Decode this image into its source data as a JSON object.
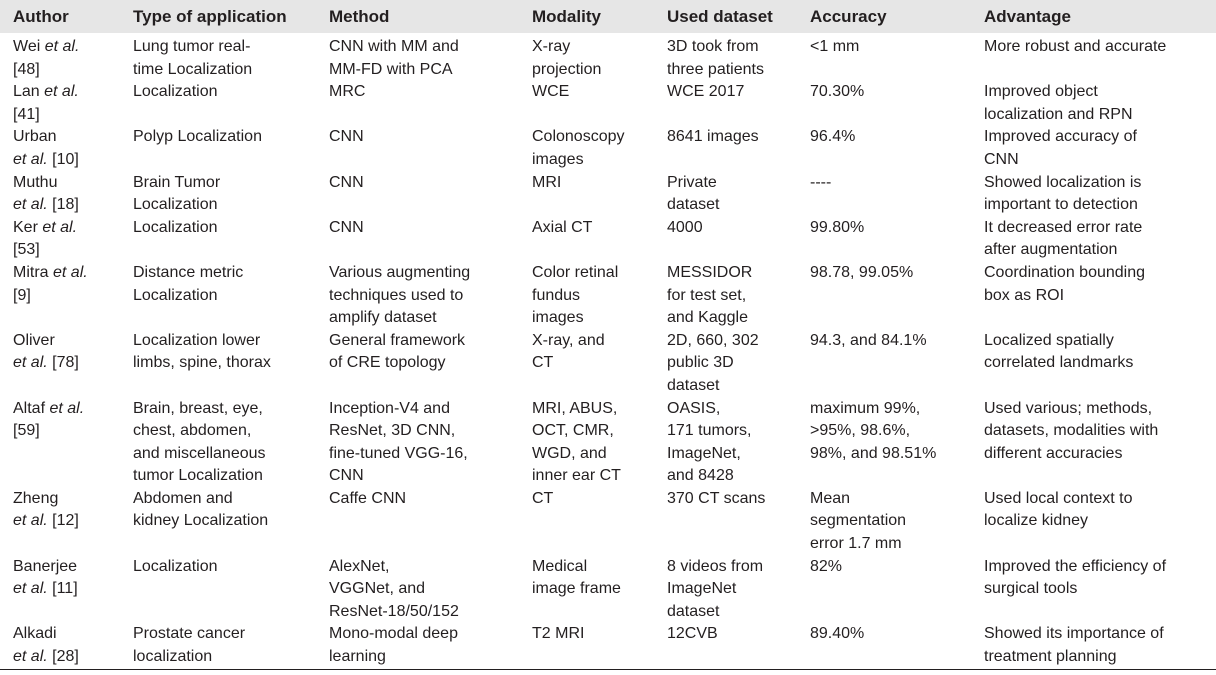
{
  "headers": [
    "Author",
    "Type of application",
    "Method",
    "Modality",
    "Used dataset",
    "Accuracy",
    "Advantage"
  ],
  "rows": [
    {
      "author": [
        [
          "Wei ",
          "et al.",
          ""
        ],
        [
          "[48]",
          "",
          ""
        ]
      ],
      "type": [
        "Lung tumor real-",
        "time Localization"
      ],
      "method": [
        "CNN with MM and",
        "MM-FD with PCA"
      ],
      "modality": [
        "X-ray",
        "projection"
      ],
      "dataset": [
        "3D took from",
        "three patients"
      ],
      "accuracy": [
        "<1 mm"
      ],
      "advantage": [
        "More robust and accurate"
      ]
    },
    {
      "author": [
        [
          "Lan ",
          "et al.",
          ""
        ],
        [
          "[41]",
          "",
          ""
        ]
      ],
      "type": [
        "Localization"
      ],
      "method": [
        "MRC"
      ],
      "modality": [
        "WCE"
      ],
      "dataset": [
        "WCE 2017"
      ],
      "accuracy": [
        "70.30%"
      ],
      "advantage": [
        "Improved object",
        "localization and RPN"
      ]
    },
    {
      "author": [
        [
          "Urban",
          "",
          ""
        ],
        [
          "",
          "et al.",
          " [10]"
        ]
      ],
      "type": [
        "Polyp Localization"
      ],
      "method": [
        "CNN"
      ],
      "modality": [
        "Colonoscopy",
        "images"
      ],
      "dataset": [
        "8641 images"
      ],
      "accuracy": [
        "96.4%"
      ],
      "advantage": [
        "Improved accuracy of",
        "CNN"
      ]
    },
    {
      "author": [
        [
          "Muthu",
          "",
          ""
        ],
        [
          "",
          "et al.",
          " [18]"
        ]
      ],
      "type": [
        "Brain Tumor",
        "Localization"
      ],
      "method": [
        "CNN"
      ],
      "modality": [
        "MRI"
      ],
      "dataset": [
        "Private",
        "dataset"
      ],
      "accuracy": [
        "----"
      ],
      "advantage": [
        "Showed localization is",
        "important to detection"
      ]
    },
    {
      "author": [
        [
          "Ker ",
          "et al.",
          ""
        ],
        [
          "[53]",
          "",
          ""
        ]
      ],
      "type": [
        "Localization"
      ],
      "method": [
        "CNN"
      ],
      "modality": [
        "Axial CT"
      ],
      "dataset": [
        "4000"
      ],
      "accuracy": [
        "99.80%"
      ],
      "advantage": [
        "It decreased error rate",
        "after augmentation"
      ]
    },
    {
      "author": [
        [
          "Mitra ",
          "et al.",
          ""
        ],
        [
          "[9]",
          "",
          ""
        ]
      ],
      "type": [
        "Distance metric",
        "Localization"
      ],
      "method": [
        "Various augmenting",
        "techniques used to",
        "amplify dataset"
      ],
      "modality": [
        "Color retinal",
        "fundus",
        "images"
      ],
      "dataset": [
        "MESSIDOR",
        "for test set,",
        "and Kaggle"
      ],
      "accuracy": [
        "98.78, 99.05%"
      ],
      "advantage": [
        "Coordination bounding",
        "box as ROI"
      ]
    },
    {
      "author": [
        [
          "Oliver",
          "",
          ""
        ],
        [
          "",
          "et al.",
          " [78]"
        ]
      ],
      "type": [
        "Localization lower",
        "limbs, spine, thorax"
      ],
      "method": [
        "General framework",
        "of CRE topology"
      ],
      "modality": [
        "X-ray, and",
        "CT"
      ],
      "dataset": [
        "2D, 660, 302",
        "public 3D",
        "dataset"
      ],
      "accuracy": [
        "94.3, and 84.1%"
      ],
      "advantage": [
        "Localized spatially",
        "correlated landmarks"
      ]
    },
    {
      "author": [
        [
          "Altaf ",
          "et al.",
          ""
        ],
        [
          "[59]",
          "",
          ""
        ]
      ],
      "type": [
        "Brain, breast, eye,",
        "chest, abdomen,",
        "and miscellaneous",
        "tumor Localization"
      ],
      "method": [
        "Inception-V4 and",
        "ResNet, 3D CNN,",
        "fine-tuned VGG-16,",
        "CNN"
      ],
      "modality": [
        "MRI, ABUS,",
        "OCT, CMR,",
        "WGD, and",
        "inner ear CT"
      ],
      "dataset": [
        "OASIS,",
        "171 tumors,",
        "ImageNet,",
        "and 8428"
      ],
      "accuracy": [
        "maximum 99%,",
        ">95%, 98.6%,",
        "98%, and 98.51%"
      ],
      "advantage": [
        "Used various; methods,",
        "datasets, modalities with",
        "different accuracies"
      ]
    },
    {
      "author": [
        [
          "Zheng",
          "",
          ""
        ],
        [
          " ",
          "et al.",
          " [12]"
        ]
      ],
      "type": [
        "Abdomen and",
        "kidney Localization"
      ],
      "method": [
        "Caffe CNN"
      ],
      "modality": [
        "CT"
      ],
      "dataset": [
        "370 CT scans"
      ],
      "accuracy": [
        "Mean",
        "segmentation",
        "error 1.7 mm"
      ],
      "advantage": [
        "Used local context to",
        "localize kidney"
      ]
    },
    {
      "author": [
        [
          "Banerjee",
          "",
          ""
        ],
        [
          "",
          "et al.",
          " [11]"
        ]
      ],
      "type": [
        "Localization"
      ],
      "method": [
        "AlexNet,",
        "VGGNet, and",
        "ResNet-18/50/152"
      ],
      "modality": [
        "Medical",
        "image frame"
      ],
      "dataset": [
        "8 videos from",
        "ImageNet",
        "dataset"
      ],
      "accuracy": [
        "82%"
      ],
      "advantage": [
        "Improved the efficiency of",
        "surgical tools"
      ]
    },
    {
      "author": [
        [
          "Alkadi",
          "",
          ""
        ],
        [
          "",
          "et al.",
          " [28]"
        ]
      ],
      "type": [
        "Prostate cancer",
        "localization"
      ],
      "method": [
        "Mono-modal deep",
        "learning"
      ],
      "modality": [
        "T2 MRI"
      ],
      "dataset": [
        "12CVB"
      ],
      "accuracy": [
        "89.40%"
      ],
      "advantage": [
        "Showed its importance of",
        "treatment planning"
      ]
    }
  ]
}
